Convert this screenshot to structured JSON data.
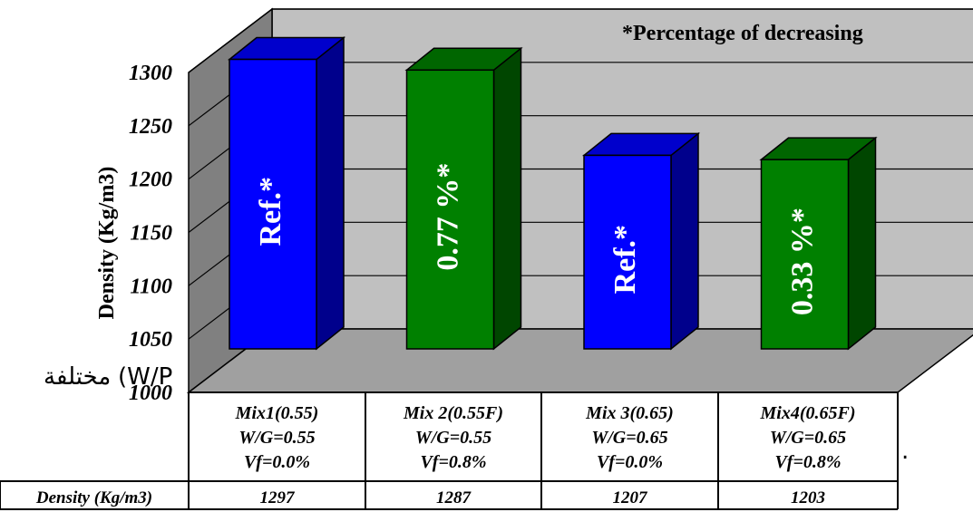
{
  "chart_data": {
    "type": "bar",
    "title": "",
    "ylabel": "Density (Kg/m3)",
    "ylim": [
      1000,
      1300
    ],
    "yticks": [
      "1000",
      "1050",
      "1100",
      "1150",
      "1200",
      "1250",
      "1300"
    ],
    "categories": [
      [
        "Mix1(0.55)",
        "W/G=0.55",
        "Vf=0.0%"
      ],
      [
        "Mix 2(0.55F)",
        "W/G=0.55",
        "Vf=0.8%"
      ],
      [
        "Mix 3(0.65)",
        "W/G=0.65",
        "Vf=0.0%"
      ],
      [
        "Mix4(0.65F)",
        "W/G=0.65",
        "Vf=0.8%"
      ]
    ],
    "values": [
      1297,
      1287,
      1207,
      1203
    ],
    "bar_labels": [
      "Ref.*",
      "0.77 %*",
      "Ref.*",
      "0.33 %*"
    ],
    "bar_colors": [
      "#0000ff",
      "#008000",
      "#0000ff",
      "#008000"
    ],
    "annotation": "*Percentage of decreasing",
    "table": {
      "row_label": "Density (Kg/m3)",
      "values": [
        "1297",
        "1287",
        "1207",
        "1203"
      ]
    },
    "grid": true,
    "legend": "none"
  },
  "stray_text": {
    "arabic": "مختلفة",
    "fragment": "(W/P",
    "dot": "."
  }
}
